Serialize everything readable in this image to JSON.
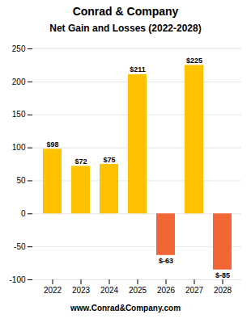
{
  "chart_data": {
    "type": "bar",
    "title": "Net Gain and Losses (2022-2028)",
    "annotations": [
      "Conrad & Company",
      "www.Conrad&Company.com"
    ],
    "categories": [
      "2022",
      "2023",
      "2024",
      "2025",
      "2026",
      "2027",
      "2028"
    ],
    "values": [
      98,
      72,
      75,
      211,
      -63,
      225,
      -85
    ],
    "value_labels": [
      "$98",
      "$72",
      "$75",
      "$211",
      "$-63",
      "$225",
      "$-85"
    ],
    "data_labels": true,
    "colors": [
      "#FFC200",
      "#FFC200",
      "#FFC200",
      "#FFC200",
      "#F26535",
      "#FFC200",
      "#F26535"
    ],
    "ylim": [
      -100,
      250
    ],
    "yticks": [
      -100,
      -50,
      0,
      50,
      100,
      150,
      200,
      250
    ],
    "grid": true
  }
}
